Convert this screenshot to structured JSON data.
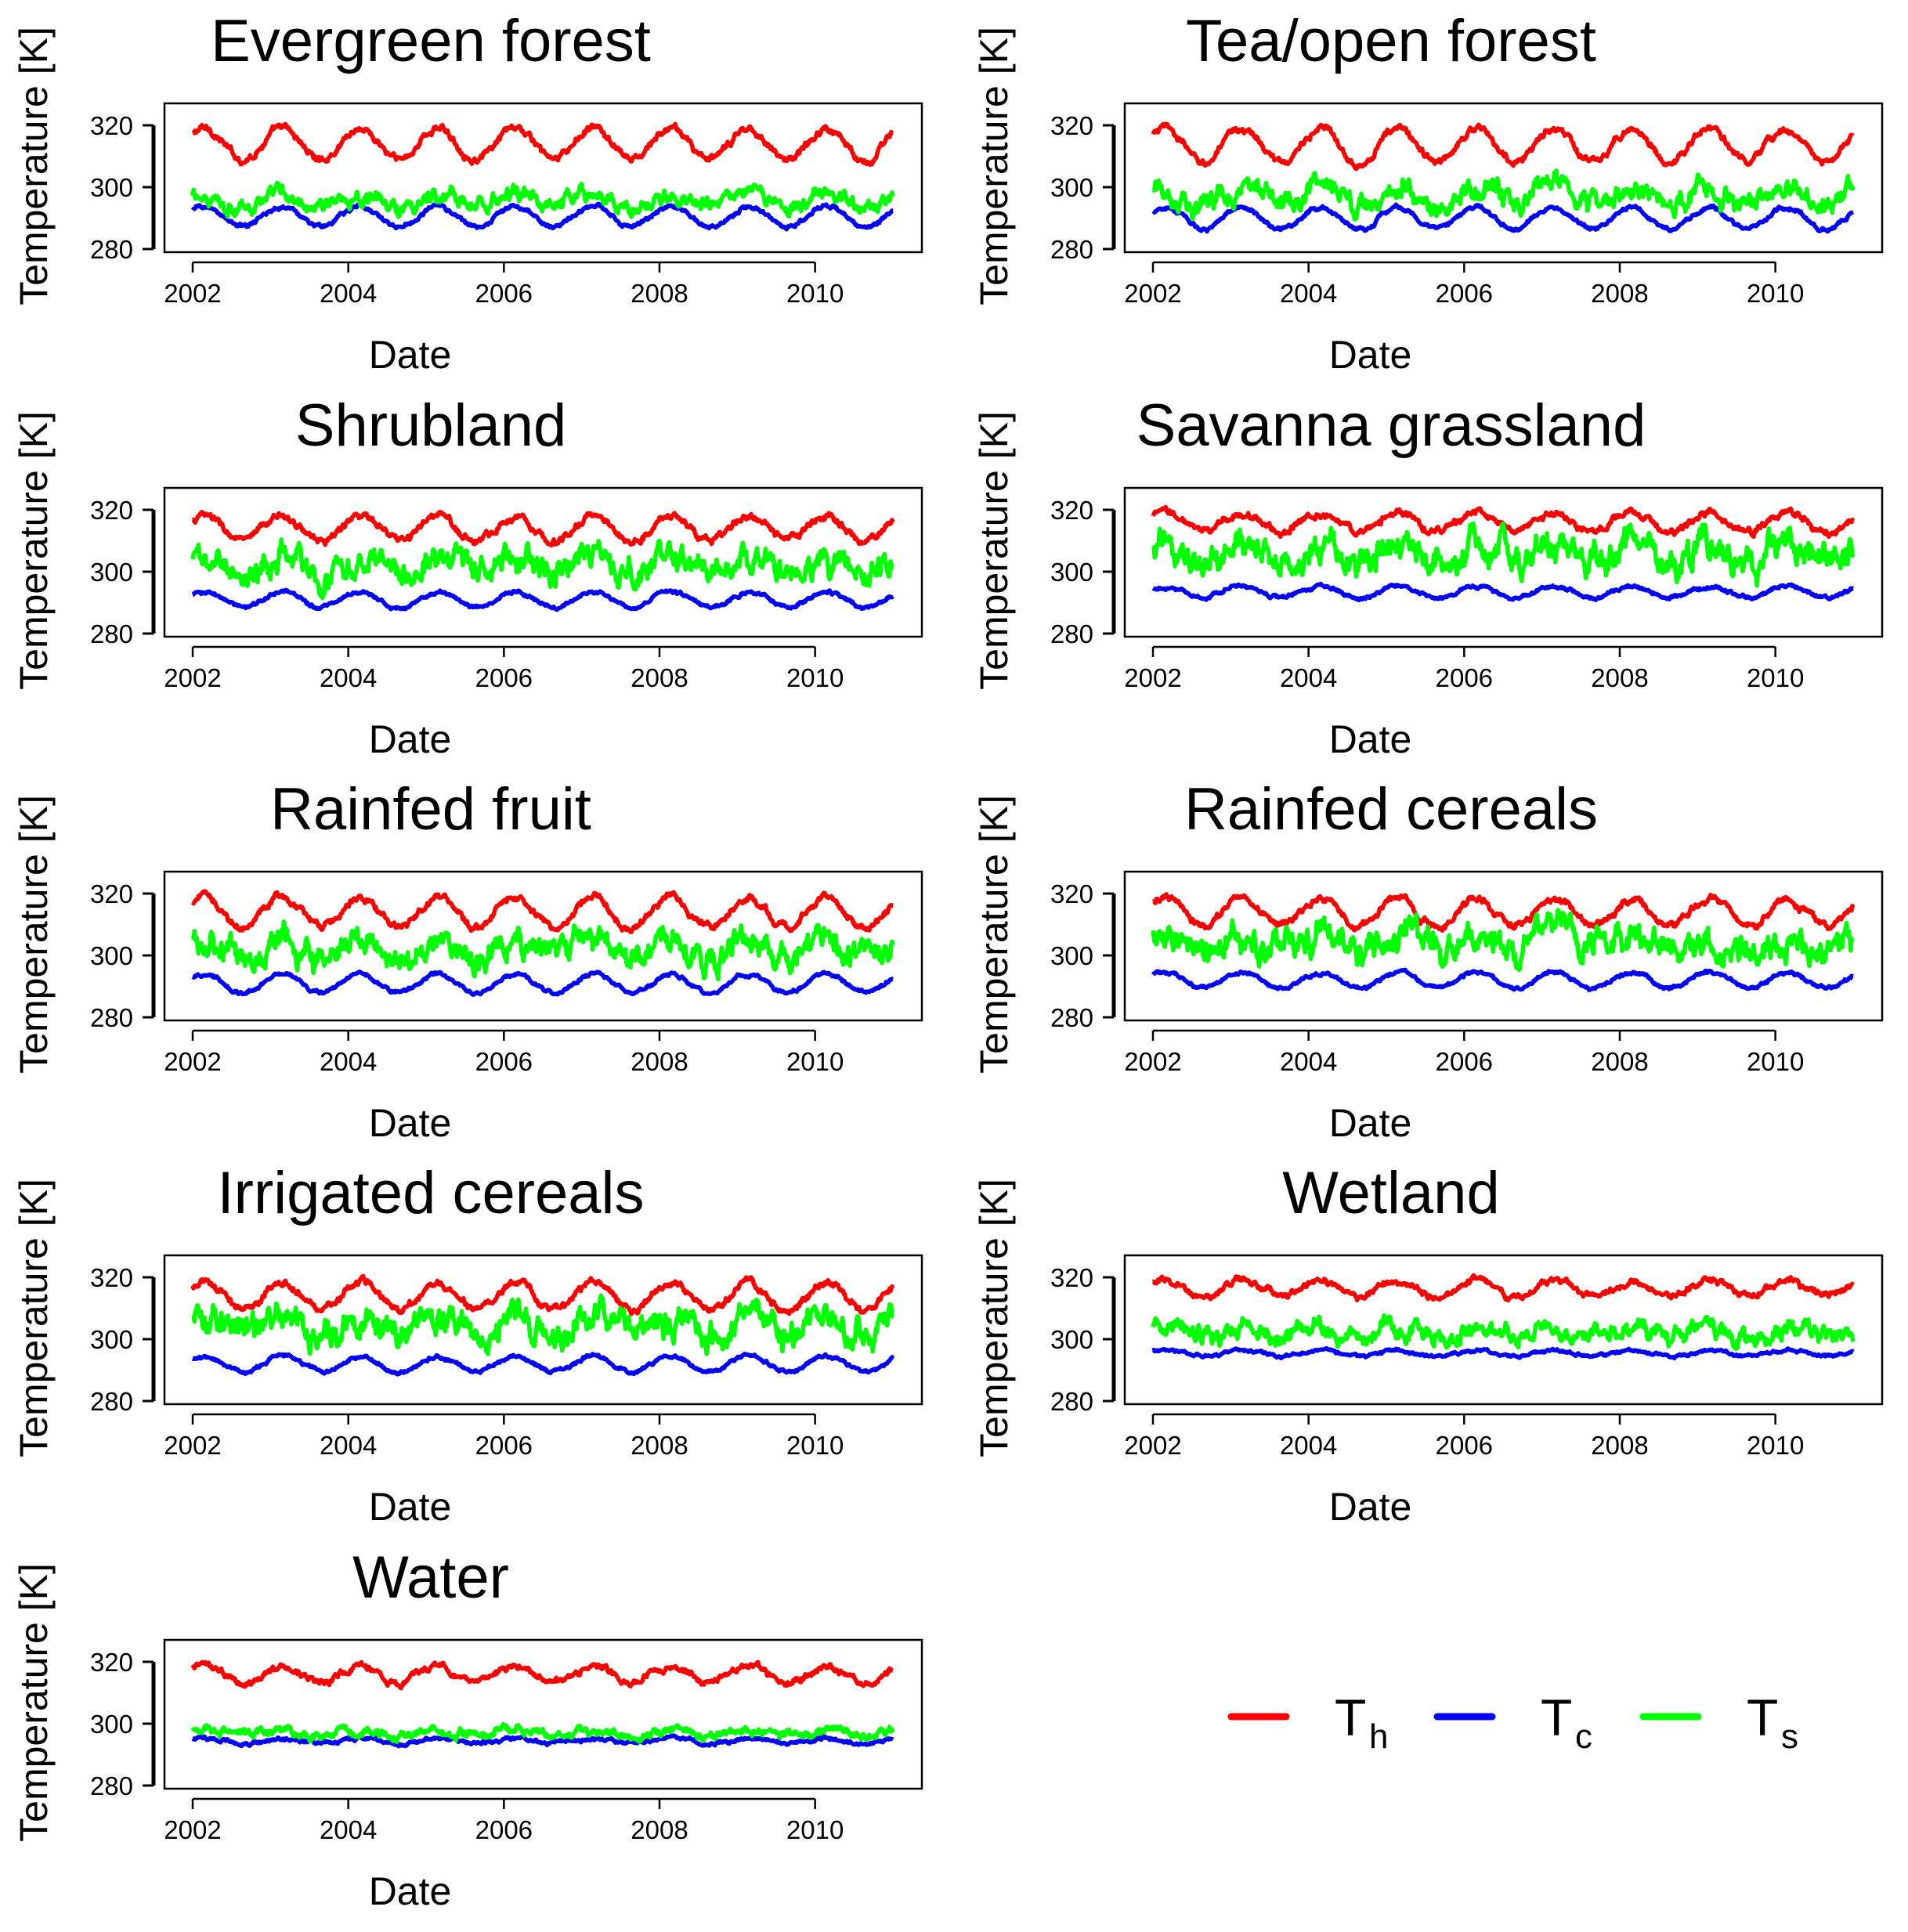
{
  "figure": {
    "legend": {
      "placement": "bottom-right",
      "items": [
        {
          "symbol": "T",
          "subscript": "h",
          "color": "#ff0000"
        },
        {
          "symbol": "T",
          "subscript": "c",
          "color": "#0000ff"
        },
        {
          "symbol": "T",
          "subscript": "s",
          "color": "#00ff00"
        }
      ]
    }
  },
  "chart_data": [
    {
      "type": "line",
      "title": "Evergreen forest",
      "xlabel": "Date",
      "ylabel": "Temperature [K]",
      "xlim": [
        2002,
        2011
      ],
      "ylim": [
        280,
        320
      ],
      "x_ticks": [
        "2002",
        "2004",
        "2006",
        "2008",
        "2010"
      ],
      "y_ticks": [
        "280",
        "300",
        "320"
      ],
      "grid": false,
      "x_range": [
        2002.0,
        2011.0
      ],
      "series": [
        {
          "key": "Th",
          "color": "#ff0000",
          "mean": 314,
          "amplitude": 5,
          "noise": 1.2,
          "phase": 0.15
        },
        {
          "key": "Tc",
          "color": "#0000ff",
          "mean": 290.5,
          "amplitude": 3.2,
          "noise": 0.7,
          "phase": 0.15
        },
        {
          "key": "Ts",
          "color": "#00ff00",
          "mean": 295.5,
          "amplitude": 2,
          "noise": 2.5,
          "phase": 0.15
        }
      ]
    },
    {
      "type": "line",
      "title": "Tea/open forest",
      "xlabel": "Date",
      "ylabel": "Temperature [K]",
      "xlim": [
        2002,
        2011
      ],
      "ylim": [
        280,
        320
      ],
      "x_ticks": [
        "2002",
        "2004",
        "2006",
        "2008",
        "2010"
      ],
      "y_ticks": [
        "280",
        "300",
        "320"
      ],
      "grid": false,
      "x_range": [
        2002.0,
        2011.0
      ],
      "series": [
        {
          "key": "Th",
          "color": "#ff0000",
          "mean": 313.5,
          "amplitude": 5.5,
          "noise": 1.2,
          "phase": 0.15
        },
        {
          "key": "Tc",
          "color": "#0000ff",
          "mean": 290,
          "amplitude": 3.5,
          "noise": 0.7,
          "phase": 0.15
        },
        {
          "key": "Ts",
          "color": "#00ff00",
          "mean": 297,
          "amplitude": 2.5,
          "noise": 3.5,
          "phase": 0.15
        }
      ]
    },
    {
      "type": "line",
      "title": "Shrubland",
      "xlabel": "Date",
      "ylabel": "Temperature [K]",
      "xlim": [
        2002,
        2011
      ],
      "ylim": [
        280,
        320
      ],
      "x_ticks": [
        "2002",
        "2004",
        "2006",
        "2008",
        "2010"
      ],
      "y_ticks": [
        "280",
        "300",
        "320"
      ],
      "grid": false,
      "x_range": [
        2002.0,
        2011.0
      ],
      "series": [
        {
          "key": "Th",
          "color": "#ff0000",
          "mean": 314,
          "amplitude": 4,
          "noise": 1.2,
          "phase": 0.15
        },
        {
          "key": "Tc",
          "color": "#0000ff",
          "mean": 291,
          "amplitude": 2.5,
          "noise": 0.6,
          "phase": 0.15
        },
        {
          "key": "Ts",
          "color": "#00ff00",
          "mean": 302,
          "amplitude": 2.5,
          "noise": 4.5,
          "phase": 0.15
        }
      ]
    },
    {
      "type": "line",
      "title": "Savanna grassland",
      "xlabel": "Date",
      "ylabel": "Temperature [K]",
      "xlim": [
        2002,
        2011
      ],
      "ylim": [
        280,
        320
      ],
      "x_ticks": [
        "2002",
        "2004",
        "2006",
        "2008",
        "2010"
      ],
      "y_ticks": [
        "280",
        "300",
        "320"
      ],
      "grid": false,
      "x_range": [
        2002.0,
        2011.0
      ],
      "series": [
        {
          "key": "Th",
          "color": "#ff0000",
          "mean": 316,
          "amplitude": 3,
          "noise": 1.2,
          "phase": 0.15
        },
        {
          "key": "Tc",
          "color": "#0000ff",
          "mean": 293.5,
          "amplitude": 1.8,
          "noise": 0.6,
          "phase": 0.15
        },
        {
          "key": "Ts",
          "color": "#00ff00",
          "mean": 306,
          "amplitude": 2.5,
          "noise": 5,
          "phase": 0.15
        }
      ]
    },
    {
      "type": "line",
      "title": "Rainfed fruit",
      "xlabel": "Date",
      "ylabel": "Temperature [K]",
      "xlim": [
        2002,
        2011
      ],
      "ylim": [
        280,
        320
      ],
      "x_ticks": [
        "2002",
        "2004",
        "2006",
        "2008",
        "2010"
      ],
      "y_ticks": [
        "280",
        "300",
        "320"
      ],
      "grid": false,
      "x_range": [
        2002.0,
        2011.0
      ],
      "series": [
        {
          "key": "Th",
          "color": "#ff0000",
          "mean": 314,
          "amplitude": 5,
          "noise": 1.2,
          "phase": 0.15
        },
        {
          "key": "Tc",
          "color": "#0000ff",
          "mean": 291,
          "amplitude": 3,
          "noise": 0.6,
          "phase": 0.15
        },
        {
          "key": "Ts",
          "color": "#00ff00",
          "mean": 302,
          "amplitude": 3,
          "noise": 4.5,
          "phase": 0.15
        }
      ]
    },
    {
      "type": "line",
      "title": "Rainfed cereals",
      "xlabel": "Date",
      "ylabel": "Temperature [K]",
      "xlim": [
        2002,
        2011
      ],
      "ylim": [
        280,
        320
      ],
      "x_ticks": [
        "2002",
        "2004",
        "2006",
        "2008",
        "2010"
      ],
      "y_ticks": [
        "280",
        "300",
        "320"
      ],
      "grid": false,
      "x_range": [
        2002.0,
        2011.0
      ],
      "series": [
        {
          "key": "Th",
          "color": "#ff0000",
          "mean": 314,
          "amplitude": 4.5,
          "noise": 1.2,
          "phase": 0.15
        },
        {
          "key": "Tc",
          "color": "#0000ff",
          "mean": 292,
          "amplitude": 2.5,
          "noise": 0.6,
          "phase": 0.15
        },
        {
          "key": "Ts",
          "color": "#00ff00",
          "mean": 304,
          "amplitude": 3,
          "noise": 5,
          "phase": 0.15
        }
      ]
    },
    {
      "type": "line",
      "title": "Irrigated cereals",
      "xlabel": "Date",
      "ylabel": "Temperature [K]",
      "xlim": [
        2002,
        2011
      ],
      "ylim": [
        280,
        320
      ],
      "x_ticks": [
        "2002",
        "2004",
        "2006",
        "2008",
        "2010"
      ],
      "y_ticks": [
        "280",
        "300",
        "320"
      ],
      "grid": false,
      "x_range": [
        2002.0,
        2011.0
      ],
      "series": [
        {
          "key": "Th",
          "color": "#ff0000",
          "mean": 314,
          "amplitude": 4.5,
          "noise": 1.2,
          "phase": 0.15
        },
        {
          "key": "Tc",
          "color": "#0000ff",
          "mean": 292,
          "amplitude": 2.5,
          "noise": 0.6,
          "phase": 0.15
        },
        {
          "key": "Ts",
          "color": "#00ff00",
          "mean": 304,
          "amplitude": 3,
          "noise": 5,
          "phase": 0.15
        }
      ]
    },
    {
      "type": "line",
      "title": "Wetland",
      "xlabel": "Date",
      "ylabel": "Temperature [K]",
      "xlim": [
        2002,
        2011
      ],
      "ylim": [
        280,
        320
      ],
      "x_ticks": [
        "2002",
        "2004",
        "2006",
        "2008",
        "2010"
      ],
      "y_ticks": [
        "280",
        "300",
        "320"
      ],
      "grid": false,
      "x_range": [
        2002.0,
        2011.0
      ],
      "series": [
        {
          "key": "Th",
          "color": "#ff0000",
          "mean": 316.5,
          "amplitude": 2.5,
          "noise": 1.1,
          "phase": 0.15
        },
        {
          "key": "Tc",
          "color": "#0000ff",
          "mean": 295.5,
          "amplitude": 1,
          "noise": 0.5,
          "phase": 0.15
        },
        {
          "key": "Ts",
          "color": "#00ff00",
          "mean": 302,
          "amplitude": 1.5,
          "noise": 3,
          "phase": 0.15
        }
      ]
    },
    {
      "type": "line",
      "title": "Water",
      "xlabel": "Date",
      "ylabel": "Temperature [K]",
      "xlim": [
        2002,
        2011
      ],
      "ylim": [
        280,
        320
      ],
      "x_ticks": [
        "2002",
        "2004",
        "2006",
        "2008",
        "2010"
      ],
      "y_ticks": [
        "280",
        "300",
        "320"
      ],
      "grid": false,
      "x_range": [
        2002.0,
        2011.0
      ],
      "series": [
        {
          "key": "Th",
          "color": "#ff0000",
          "mean": 316,
          "amplitude": 2.5,
          "noise": 1.1,
          "phase": 0.15
        },
        {
          "key": "Tc",
          "color": "#0000ff",
          "mean": 294.5,
          "amplitude": 0.8,
          "noise": 0.6,
          "phase": 0.15
        },
        {
          "key": "Ts",
          "color": "#00ff00",
          "mean": 297,
          "amplitude": 1,
          "noise": 1.5,
          "phase": 0.15
        }
      ]
    }
  ]
}
